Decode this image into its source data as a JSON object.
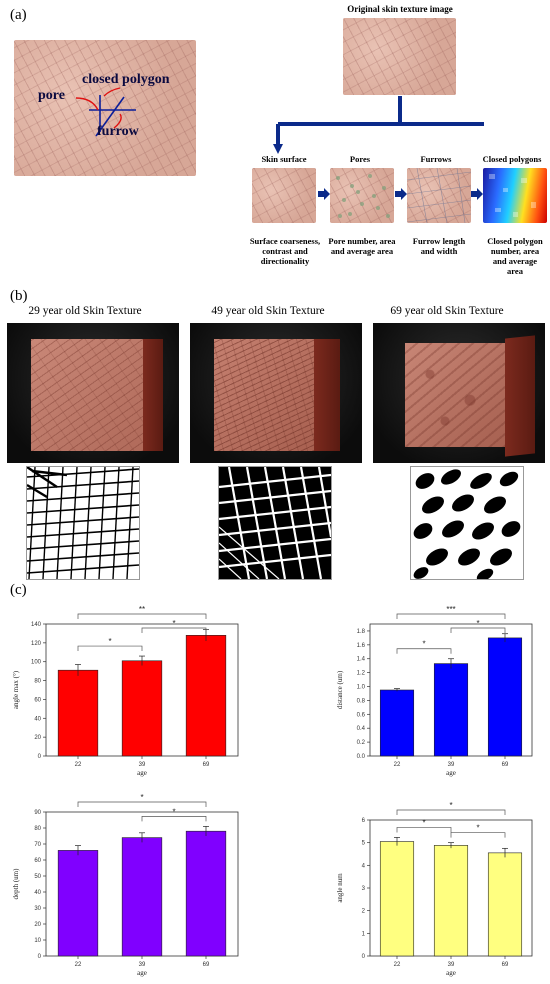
{
  "panel_a": {
    "label": "(a)",
    "annot": {
      "pore": "pore",
      "closed_polygon": "closed polygon",
      "furrow": "furrow"
    },
    "original_title": "Original skin texture image",
    "steps": [
      {
        "title": "Skin surface",
        "caption": "Surface coarseness, contrast and directionality"
      },
      {
        "title": "Pores",
        "caption": "Pore number, area and average area"
      },
      {
        "title": "Furrows",
        "caption": "Furrow length and width"
      },
      {
        "title": "Closed polygons",
        "caption": "Closed polygon number, area and average area"
      }
    ],
    "colors": {
      "flow": "#0b2a8a",
      "annot_line": "#0b1e9a",
      "annot_arrow": "#e01010"
    }
  },
  "panel_b": {
    "label": "(b)",
    "titles": [
      "29 year old Skin Texture",
      "49 year old Skin Texture",
      "69 year old Skin Texture"
    ]
  },
  "panel_c": {
    "label": "(c)"
  },
  "chart_data": [
    {
      "type": "bar",
      "categories": [
        "22",
        "39",
        "69"
      ],
      "values": [
        91,
        101,
        128
      ],
      "errors": [
        6,
        5,
        6
      ],
      "xlabel": "age",
      "ylabel": "angle max (°)",
      "ylim": [
        0,
        140
      ],
      "yticks": [
        0,
        20,
        40,
        60,
        80,
        100,
        120,
        140
      ],
      "color": "#ff0000",
      "significance": [
        {
          "from": 0,
          "to": 2,
          "label": "**"
        },
        {
          "from": 0,
          "to": 1,
          "label": "*"
        },
        {
          "from": 1,
          "to": 2,
          "label": "*"
        }
      ]
    },
    {
      "type": "bar",
      "categories": [
        "22",
        "39",
        "69"
      ],
      "values": [
        0.95,
        1.33,
        1.7
      ],
      "errors": [
        0.02,
        0.07,
        0.06
      ],
      "xlabel": "age",
      "ylabel": "distance (um)",
      "ylim": [
        0,
        1.9
      ],
      "yticks": [
        0.0,
        0.2,
        0.4,
        0.6,
        0.8,
        1.0,
        1.2,
        1.4,
        1.6,
        1.8
      ],
      "color": "#0000ff",
      "significance": [
        {
          "from": 0,
          "to": 2,
          "label": "***"
        },
        {
          "from": 0,
          "to": 1,
          "label": "*"
        },
        {
          "from": 1,
          "to": 2,
          "label": "*"
        }
      ]
    },
    {
      "type": "bar",
      "categories": [
        "22",
        "39",
        "69"
      ],
      "values": [
        66,
        74,
        78
      ],
      "errors": [
        3,
        3,
        3
      ],
      "xlabel": "age",
      "ylabel": "depth (um)",
      "ylim": [
        0,
        90
      ],
      "yticks": [
        0,
        10,
        20,
        30,
        40,
        50,
        60,
        70,
        80,
        90
      ],
      "color": "#8000ff",
      "significance": [
        {
          "from": 0,
          "to": 2,
          "label": "*"
        },
        {
          "from": 1,
          "to": 2,
          "label": "*"
        }
      ]
    },
    {
      "type": "bar",
      "categories": [
        "22",
        "39",
        "69"
      ],
      "values": [
        5.05,
        4.88,
        4.55
      ],
      "errors": [
        0.18,
        0.12,
        0.2
      ],
      "xlabel": "age",
      "ylabel": "angle num",
      "ylim": [
        0,
        6
      ],
      "yticks": [
        0,
        1,
        2,
        3,
        4,
        5,
        6
      ],
      "color": "#ffff80",
      "significance": [
        {
          "from": 0,
          "to": 2,
          "label": "*"
        },
        {
          "from": 0,
          "to": 1,
          "label": "*"
        },
        {
          "from": 1,
          "to": 2,
          "label": "*"
        }
      ]
    }
  ]
}
